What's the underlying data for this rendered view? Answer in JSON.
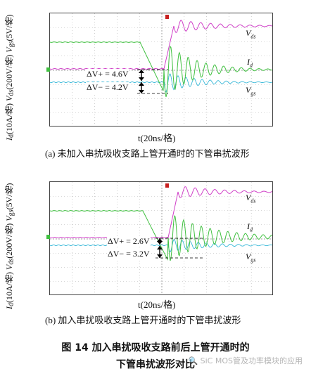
{
  "panel_a": {
    "y_label": "I_d(10A/格) V_ds(200V/格) V_gs(5V/格)",
    "y_label_parts": {
      "id": "(10A/格)",
      "vds": "(200V/格)",
      "vgs": "(5V/格)"
    },
    "x_label": "t(20ns/格)",
    "signal_vds": "V",
    "signal_vds_sub": "ds",
    "signal_id": "I",
    "signal_id_sub": "d",
    "signal_vgs": "V",
    "signal_vgs_sub": "gs",
    "dv_plus": "ΔV+ = 4.6V",
    "dv_minus": "ΔV− = 4.2V",
    "caption": "(a)  未加入串扰吸收支路上管开通时的下管串扰波形"
  },
  "panel_b": {
    "x_label": "t(20ns/格)",
    "dv_plus": "ΔV+ = 2.6V",
    "dv_minus": "ΔV− = 3.2V",
    "caption": "(b)  加入串扰吸收支路上管开通时的下管串扰波形"
  },
  "figure": {
    "title_line1": "图 14    加入串扰吸收支路前后上管开通时的",
    "title_line2": "下管串扰波形对比"
  },
  "watermark": "🔍 SiC MOS管及功率模块的应用",
  "colors": {
    "vds": "#d040c8",
    "id": "#40c040",
    "vgs": "#38b8d8",
    "grid": "#b0b0b0",
    "ref_marker": "#c82020"
  }
}
